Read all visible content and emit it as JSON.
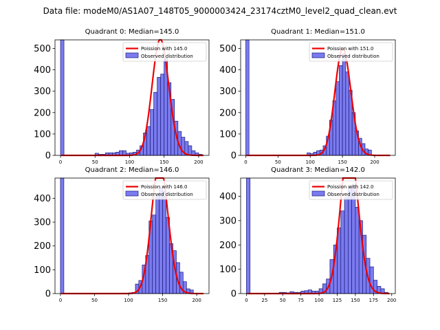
{
  "figure": {
    "title": "Data file: modeM0/AS1A07_148T05_9000003424_23174cztM0_level2_quad_clean.evt"
  },
  "colors": {
    "bar_fill": "#7b7bef",
    "bar_edge": "#1a1a7a",
    "poisson_line": "#ee0000"
  },
  "chart_data": [
    {
      "type": "bar",
      "title": "Quadrant 0: Median=145.0",
      "median": 145.0,
      "xlim": [
        -8,
        215
      ],
      "ylim": [
        0,
        540
      ],
      "xticks": [
        0,
        50,
        100,
        150,
        200
      ],
      "yticks": [
        0,
        100,
        200,
        300,
        400,
        500
      ],
      "bin_width": 5,
      "bins": [
        [
          0,
          540
        ],
        [
          50,
          10
        ],
        [
          55,
          5
        ],
        [
          60,
          5
        ],
        [
          65,
          12
        ],
        [
          70,
          12
        ],
        [
          75,
          12
        ],
        [
          80,
          15
        ],
        [
          85,
          22
        ],
        [
          90,
          22
        ],
        [
          95,
          10
        ],
        [
          100,
          12
        ],
        [
          105,
          15
        ],
        [
          110,
          25
        ],
        [
          115,
          45
        ],
        [
          120,
          105
        ],
        [
          125,
          135
        ],
        [
          130,
          215
        ],
        [
          135,
          295
        ],
        [
          140,
          365
        ],
        [
          145,
          380
        ],
        [
          150,
          455
        ],
        [
          155,
          340
        ],
        [
          160,
          262
        ],
        [
          165,
          160
        ],
        [
          170,
          112
        ],
        [
          175,
          85
        ],
        [
          180,
          65
        ],
        [
          185,
          45
        ],
        [
          190,
          22
        ],
        [
          195,
          12
        ],
        [
          200,
          5
        ]
      ],
      "legend": {
        "line_label": "Poission with 145.0",
        "bar_label": "Observed distribution"
      }
    },
    {
      "type": "bar",
      "title": "Quadrant 1: Median=151.0",
      "median": 151.0,
      "xlim": [
        -8,
        232
      ],
      "ylim": [
        0,
        540
      ],
      "xticks": [
        0,
        50,
        100,
        150,
        200
      ],
      "yticks": [
        0,
        100,
        200,
        300,
        400,
        500
      ],
      "bin_width": 5,
      "bins": [
        [
          0,
          540
        ],
        [
          95,
          12
        ],
        [
          100,
          8
        ],
        [
          105,
          15
        ],
        [
          110,
          22
        ],
        [
          115,
          25
        ],
        [
          120,
          45
        ],
        [
          125,
          90
        ],
        [
          130,
          165
        ],
        [
          135,
          255
        ],
        [
          140,
          345
        ],
        [
          145,
          420
        ],
        [
          150,
          475
        ],
        [
          155,
          390
        ],
        [
          160,
          305
        ],
        [
          165,
          200
        ],
        [
          170,
          115
        ],
        [
          175,
          80
        ],
        [
          180,
          55
        ],
        [
          185,
          30
        ],
        [
          190,
          25
        ]
      ],
      "legend": {
        "line_label": "Poission with 151.0",
        "bar_label": "Observed distribution"
      }
    },
    {
      "type": "bar",
      "title": "Quadrant 2: Median=146.0",
      "median": 146.0,
      "xlim": [
        -8,
        218
      ],
      "ylim": [
        0,
        485
      ],
      "xticks": [
        0,
        50,
        100,
        150,
        200
      ],
      "yticks": [
        0,
        100,
        200,
        300,
        400
      ],
      "bin_width": 5,
      "bins": [
        [
          0,
          485
        ],
        [
          90,
          2
        ],
        [
          95,
          2
        ],
        [
          100,
          3
        ],
        [
          105,
          5
        ],
        [
          110,
          40
        ],
        [
          115,
          55
        ],
        [
          120,
          120
        ],
        [
          125,
          160
        ],
        [
          130,
          305
        ],
        [
          135,
          330
        ],
        [
          140,
          420
        ],
        [
          145,
          445
        ],
        [
          150,
          430
        ],
        [
          155,
          320
        ],
        [
          160,
          210
        ],
        [
          165,
          180
        ],
        [
          170,
          130
        ],
        [
          175,
          90
        ],
        [
          180,
          50
        ],
        [
          185,
          20
        ],
        [
          190,
          15
        ]
      ],
      "legend": {
        "line_label": "Poission with 146.0",
        "bar_label": "Observed distribution"
      }
    },
    {
      "type": "bar",
      "title": "Quadrant 3: Median=142.0",
      "median": 142.0,
      "xlim": [
        -8,
        205
      ],
      "ylim": [
        0,
        475
      ],
      "xticks": [
        0,
        25,
        50,
        75,
        100,
        125,
        150,
        175,
        200
      ],
      "yticks": [
        0,
        100,
        200,
        300,
        400
      ],
      "bin_width": 5,
      "bins": [
        [
          0,
          475
        ],
        [
          45,
          5
        ],
        [
          50,
          5
        ],
        [
          55,
          3
        ],
        [
          60,
          8
        ],
        [
          65,
          5
        ],
        [
          70,
          5
        ],
        [
          75,
          10
        ],
        [
          80,
          12
        ],
        [
          85,
          15
        ],
        [
          90,
          10
        ],
        [
          95,
          10
        ],
        [
          100,
          20
        ],
        [
          105,
          40
        ],
        [
          110,
          60
        ],
        [
          115,
          140
        ],
        [
          120,
          200
        ],
        [
          125,
          270
        ],
        [
          130,
          340
        ],
        [
          135,
          395
        ],
        [
          140,
          435
        ],
        [
          145,
          445
        ],
        [
          150,
          355
        ],
        [
          155,
          300
        ],
        [
          160,
          240
        ],
        [
          165,
          145
        ],
        [
          170,
          110
        ],
        [
          175,
          55
        ],
        [
          180,
          30
        ],
        [
          185,
          20
        ],
        [
          190,
          5
        ]
      ],
      "legend": {
        "line_label": "Poission with 142.0",
        "bar_label": "Observed distribution"
      }
    }
  ]
}
